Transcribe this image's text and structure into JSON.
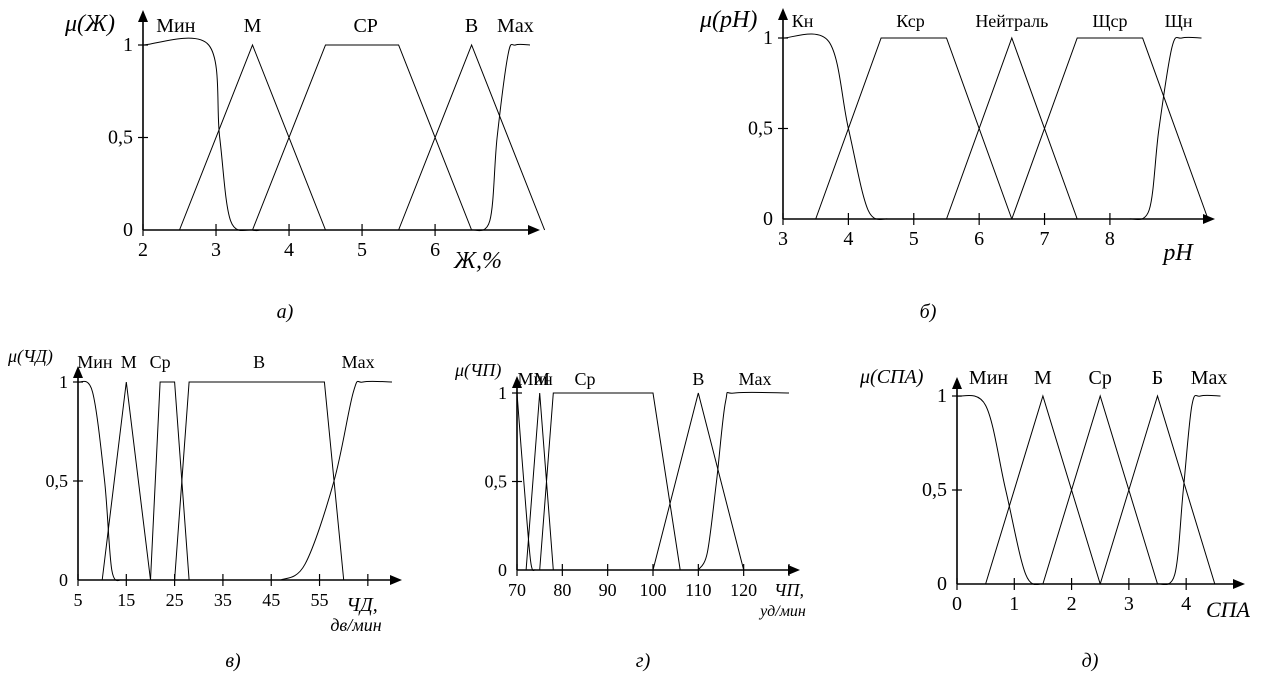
{
  "chart_data": [
    {
      "type": "line",
      "caption": "а)",
      "ylabel": "μ(Ж)",
      "xlabel": "Ж,%",
      "xlim": [
        2,
        7.3
      ],
      "ylim": [
        0,
        1
      ],
      "xticks": [
        2,
        3,
        4,
        5,
        6
      ],
      "xtick_labels": [
        "2",
        "3",
        "4",
        "5",
        "6"
      ],
      "yticks": [
        0,
        0.5,
        1
      ],
      "ytick_labels": [
        "0",
        "0,5",
        "1"
      ],
      "series": [
        {
          "name": "Мин",
          "label_x": 2.45,
          "shape": "z",
          "points": [
            [
              2,
              1
            ],
            [
              2.9,
              1
            ],
            [
              3.05,
              0.5
            ],
            [
              3.2,
              0.05
            ],
            [
              3.5,
              0
            ],
            [
              3.6,
              0
            ]
          ]
        },
        {
          "name": "М",
          "label_x": 3.5,
          "shape": "tri",
          "points": [
            [
              2.5,
              0
            ],
            [
              3.5,
              1
            ],
            [
              4.5,
              0
            ]
          ]
        },
        {
          "name": "СР",
          "label_x": 5.05,
          "shape": "trap",
          "points": [
            [
              3.5,
              0
            ],
            [
              4.5,
              1
            ],
            [
              5.5,
              1
            ],
            [
              6.5,
              0
            ]
          ]
        },
        {
          "name": "В",
          "label_x": 6.5,
          "shape": "tri",
          "points": [
            [
              5.5,
              0
            ],
            [
              6.5,
              1
            ],
            [
              7.5,
              0
            ]
          ]
        },
        {
          "name": "Max",
          "label_x": 7.1,
          "shape": "s",
          "points": [
            [
              6.5,
              0
            ],
            [
              6.75,
              0.05
            ],
            [
              6.85,
              0.5
            ],
            [
              7.0,
              0.95
            ],
            [
              7.1,
              1
            ],
            [
              7.3,
              1
            ]
          ]
        }
      ]
    },
    {
      "type": "line",
      "caption": "б)",
      "ylabel": "μ(pH)",
      "xlabel": "pH",
      "xlim": [
        3,
        9.5
      ],
      "ylim": [
        0,
        1
      ],
      "xticks": [
        3,
        4,
        5,
        6,
        7,
        8
      ],
      "xtick_labels": [
        "3",
        "4",
        "5",
        "6",
        "7",
        "8"
      ],
      "yticks": [
        0,
        0.5,
        1
      ],
      "ytick_labels": [
        "0",
        "0,5",
        "1"
      ],
      "series": [
        {
          "name": "Кн",
          "label_x": 3.3,
          "shape": "z",
          "points": [
            [
              3,
              1
            ],
            [
              3.7,
              0.98
            ],
            [
              4.0,
              0.5
            ],
            [
              4.3,
              0.05
            ],
            [
              4.6,
              0
            ]
          ]
        },
        {
          "name": "Кср",
          "label_x": 4.95,
          "shape": "trap",
          "points": [
            [
              3.5,
              0
            ],
            [
              4.5,
              1
            ],
            [
              5.5,
              1
            ],
            [
              6.5,
              0
            ]
          ]
        },
        {
          "name": "Нейтраль",
          "label_x": 6.5,
          "shape": "tri",
          "points": [
            [
              5.5,
              0
            ],
            [
              6.5,
              1
            ],
            [
              7.5,
              0
            ]
          ]
        },
        {
          "name": "Щср",
          "label_x": 8.0,
          "shape": "trap",
          "points": [
            [
              6.5,
              0
            ],
            [
              7.5,
              1
            ],
            [
              8.5,
              1
            ],
            [
              9.5,
              0
            ]
          ]
        },
        {
          "name": "Щн",
          "label_x": 9.05,
          "shape": "s",
          "points": [
            [
              8.3,
              0
            ],
            [
              8.6,
              0.05
            ],
            [
              8.75,
              0.5
            ],
            [
              8.95,
              0.95
            ],
            [
              9.1,
              1
            ],
            [
              9.4,
              1
            ]
          ]
        }
      ]
    },
    {
      "type": "line",
      "caption": "в)",
      "ylabel": "μ(ЧД)",
      "xlabel": "ЧД,",
      "xlabel2": "дв/мин",
      "xlim": [
        5,
        70
      ],
      "ylim": [
        0,
        1
      ],
      "xticks": [
        5,
        15,
        25,
        35,
        45,
        55,
        65
      ],
      "xtick_labels": [
        "5",
        "15",
        "25",
        "35",
        "45",
        "55",
        ""
      ],
      "yticks": [
        0,
        0.5,
        1
      ],
      "ytick_labels": [
        "0",
        "0,5",
        "1"
      ],
      "series": [
        {
          "name": "Мин",
          "label_x": 8.5,
          "shape": "z",
          "points": [
            [
              5,
              1
            ],
            [
              8,
              0.95
            ],
            [
              10.5,
              0.5
            ],
            [
              12,
              0.05
            ],
            [
              14,
              0
            ]
          ]
        },
        {
          "name": "М",
          "label_x": 15.5,
          "shape": "tri",
          "points": [
            [
              10,
              0
            ],
            [
              15,
              1
            ],
            [
              20,
              0
            ]
          ]
        },
        {
          "name": "Ср",
          "label_x": 22,
          "shape": "trap",
          "points": [
            [
              20,
              0
            ],
            [
              22,
              1
            ],
            [
              25,
              1
            ],
            [
              28,
              0
            ]
          ]
        },
        {
          "name": "В",
          "label_x": 42.5,
          "shape": "trap",
          "points": [
            [
              25,
              0
            ],
            [
              28,
              1
            ],
            [
              56,
              1
            ],
            [
              60,
              0
            ]
          ]
        },
        {
          "name": "Max",
          "label_x": 63,
          "shape": "s",
          "points": [
            [
              47,
              0
            ],
            [
              52,
              0.08
            ],
            [
              58,
              0.5
            ],
            [
              62,
              0.95
            ],
            [
              64,
              1
            ],
            [
              70,
              1
            ]
          ]
        }
      ]
    },
    {
      "type": "line",
      "caption": "г)",
      "ylabel": "μ(ЧП)",
      "xlabel": "ЧП,",
      "xlabel2": "уд/мин",
      "xlim": [
        70,
        130
      ],
      "ylim": [
        0,
        1
      ],
      "xticks": [
        70,
        80,
        90,
        100,
        110,
        120,
        130
      ],
      "xtick_labels": [
        "70",
        "80",
        "90",
        "100",
        "110",
        "120",
        ""
      ],
      "yticks": [
        0,
        0.5,
        1
      ],
      "ytick_labels": [
        "0",
        "0,5",
        "1"
      ],
      "series": [
        {
          "name": "Мин",
          "label_x": 74,
          "shape": "z",
          "points": [
            [
              70,
              1
            ],
            [
              71.5,
              0.5
            ],
            [
              73,
              0.05
            ],
            [
              74,
              0
            ]
          ]
        },
        {
          "name": "М",
          "label_x": 75.5,
          "shape": "tri",
          "points": [
            [
              72,
              0
            ],
            [
              75,
              1
            ],
            [
              78,
              0
            ]
          ]
        },
        {
          "name": "Ср",
          "label_x": 85,
          "shape": "trap",
          "points": [
            [
              75,
              0
            ],
            [
              78,
              1
            ],
            [
              100,
              1
            ],
            [
              106,
              0
            ]
          ]
        },
        {
          "name": "В",
          "label_x": 110,
          "shape": "tri",
          "points": [
            [
              100,
              0
            ],
            [
              110,
              1
            ],
            [
              120,
              0
            ]
          ]
        },
        {
          "name": "Max",
          "label_x": 122.5,
          "shape": "s",
          "points": [
            [
              110,
              0
            ],
            [
              112,
              0.1
            ],
            [
              114,
              0.5
            ],
            [
              116,
              0.95
            ],
            [
              118,
              1
            ],
            [
              130,
              1
            ]
          ]
        }
      ]
    },
    {
      "type": "line",
      "caption": "д)",
      "ylabel": "μ(СПА)",
      "xlabel": "СПА",
      "xlim": [
        0,
        4.8
      ],
      "ylim": [
        0,
        1
      ],
      "xticks": [
        0,
        1,
        2,
        3,
        4
      ],
      "xtick_labels": [
        "0",
        "1",
        "2",
        "3",
        "4"
      ],
      "yticks": [
        0,
        0.5,
        1
      ],
      "ytick_labels": [
        "0",
        "0,5",
        "1"
      ],
      "series": [
        {
          "name": "Мин",
          "label_x": 0.55,
          "shape": "z",
          "points": [
            [
              0,
              1
            ],
            [
              0.5,
              0.95
            ],
            [
              0.85,
              0.5
            ],
            [
              1.2,
              0.05
            ],
            [
              1.5,
              0
            ]
          ]
        },
        {
          "name": "М",
          "label_x": 1.5,
          "shape": "tri",
          "points": [
            [
              0.5,
              0
            ],
            [
              1.5,
              1
            ],
            [
              2.5,
              0
            ]
          ]
        },
        {
          "name": "Ср",
          "label_x": 2.5,
          "shape": "tri",
          "points": [
            [
              1.5,
              0
            ],
            [
              2.5,
              1
            ],
            [
              3.5,
              0
            ]
          ]
        },
        {
          "name": "Б",
          "label_x": 3.5,
          "shape": "tri",
          "points": [
            [
              2.5,
              0
            ],
            [
              3.5,
              1
            ],
            [
              4.5,
              0
            ]
          ]
        },
        {
          "name": "Max",
          "label_x": 4.4,
          "shape": "s",
          "points": [
            [
              3.5,
              0
            ],
            [
              3.8,
              0.05
            ],
            [
              3.95,
              0.5
            ],
            [
              4.1,
              0.95
            ],
            [
              4.25,
              1
            ],
            [
              4.6,
              1
            ]
          ]
        }
      ]
    }
  ]
}
